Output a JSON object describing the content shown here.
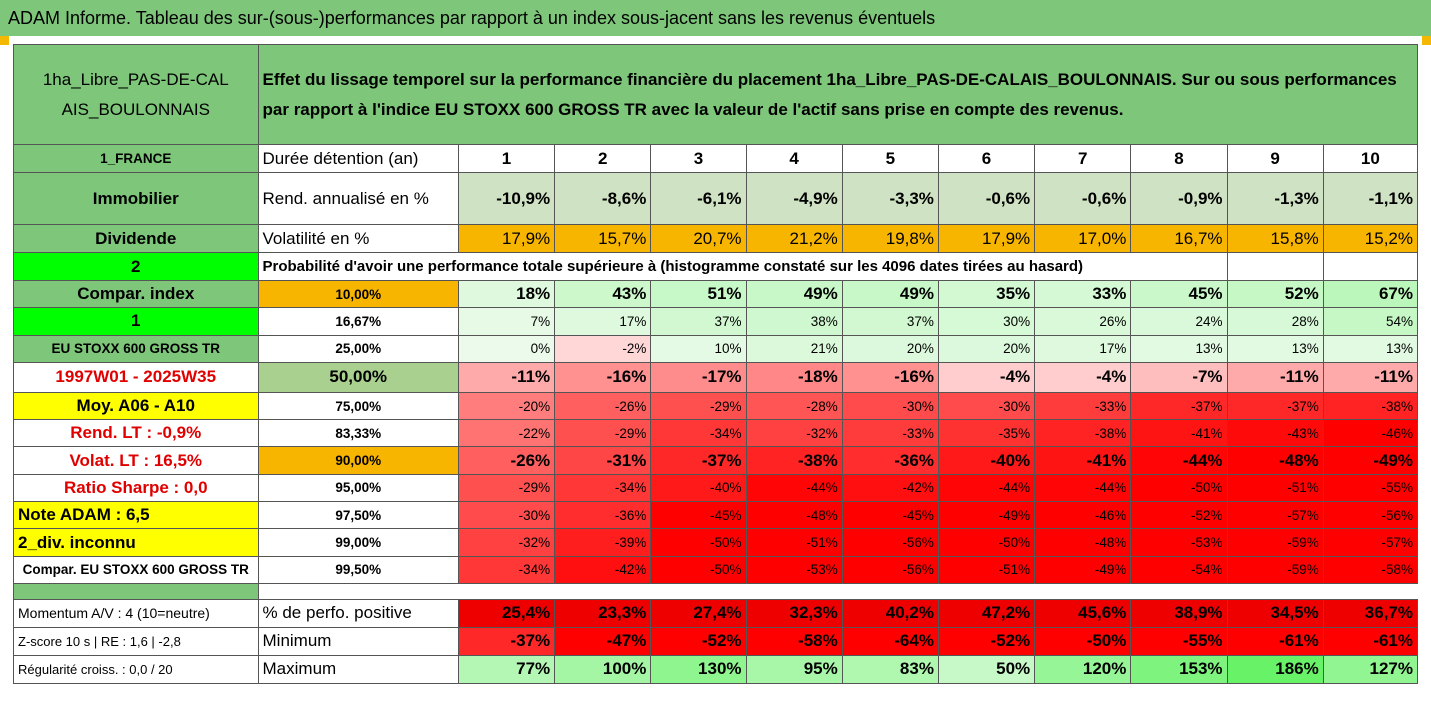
{
  "banner": "ADAM Informe. Tableau des sur-(sous-)performances par rapport à un index sous-jacent sans les revenus éventuels",
  "header": {
    "fund": "1ha_Libre_PAS-DE-CALAIS_BOULONNAIS",
    "description": "Effet du lissage temporel sur la performance financière du placement 1ha_Libre_PAS-DE-CALAIS_BOULONNAIS. Sur ou sous performances par rapport à l'indice EU STOXX 600 GROSS TR avec la valeur de l'actif sans prise en compte des revenus."
  },
  "years_row": {
    "left": "1_FRANCE",
    "label": "Durée détention (an)",
    "years": [
      "1",
      "2",
      "3",
      "4",
      "5",
      "6",
      "7",
      "8",
      "9",
      "10"
    ]
  },
  "rend_row": {
    "left": "Immobilier",
    "label": "Rend. annualisé en %",
    "values": [
      "-10,9%",
      "-8,6%",
      "-6,1%",
      "-4,9%",
      "-3,3%",
      "-0,6%",
      "-0,6%",
      "-0,9%",
      "-1,3%",
      "-1,1%"
    ]
  },
  "vol_row": {
    "left": "Dividende",
    "label": "Volatilité en %",
    "values": [
      "17,9%",
      "15,7%",
      "20,7%",
      "21,2%",
      "19,8%",
      "17,9%",
      "17,0%",
      "16,7%",
      "15,8%",
      "15,2%"
    ]
  },
  "prob_row": {
    "left": "2",
    "text": "Probabilité d'avoir une performance totale supérieure à (histogramme constaté sur les 4096 dates tirées au hasard)"
  },
  "quantiles": [
    {
      "left": "Compar. index",
      "pct": "10,00%",
      "values": [
        "18%",
        "43%",
        "51%",
        "49%",
        "49%",
        "35%",
        "33%",
        "45%",
        "52%",
        "67%"
      ]
    },
    {
      "left": "1",
      "pct": "16,67%",
      "values": [
        "7%",
        "17%",
        "37%",
        "38%",
        "37%",
        "30%",
        "26%",
        "24%",
        "28%",
        "54%"
      ]
    },
    {
      "left": "EU STOXX 600 GROSS TR",
      "pct": "25,00%",
      "values": [
        "0%",
        "-2%",
        "10%",
        "21%",
        "20%",
        "20%",
        "17%",
        "13%",
        "13%",
        "13%"
      ]
    },
    {
      "left": "1997W01 - 2025W35",
      "pct": "50,00%",
      "values": [
        "-11%",
        "-16%",
        "-17%",
        "-18%",
        "-16%",
        "-4%",
        "-4%",
        "-7%",
        "-11%",
        "-11%"
      ]
    },
    {
      "left": "Moy. A06 - A10",
      "pct": "75,00%",
      "values": [
        "-20%",
        "-26%",
        "-29%",
        "-28%",
        "-30%",
        "-30%",
        "-33%",
        "-37%",
        "-37%",
        "-38%"
      ]
    },
    {
      "left": "Rend. LT :   -0,9%",
      "pct": "83,33%",
      "values": [
        "-22%",
        "-29%",
        "-34%",
        "-32%",
        "-33%",
        "-35%",
        "-38%",
        "-41%",
        "-43%",
        "-46%"
      ]
    },
    {
      "left": "Volat. LT :   16,5%",
      "pct": "90,00%",
      "values": [
        "-26%",
        "-31%",
        "-37%",
        "-38%",
        "-36%",
        "-40%",
        "-41%",
        "-44%",
        "-48%",
        "-49%"
      ]
    },
    {
      "left": "Ratio Sharpe :   0,0",
      "pct": "95,00%",
      "values": [
        "-29%",
        "-34%",
        "-40%",
        "-44%",
        "-42%",
        "-44%",
        "-44%",
        "-50%",
        "-51%",
        "-55%"
      ]
    },
    {
      "left": "Note ADAM : 6,5",
      "pct": "97,50%",
      "values": [
        "-30%",
        "-36%",
        "-45%",
        "-48%",
        "-45%",
        "-49%",
        "-46%",
        "-52%",
        "-57%",
        "-56%"
      ]
    },
    {
      "left": "2_div. inconnu",
      "pct": "99,00%",
      "values": [
        "-32%",
        "-39%",
        "-50%",
        "-51%",
        "-56%",
        "-50%",
        "-48%",
        "-53%",
        "-59%",
        "-57%"
      ]
    },
    {
      "left": "Compar. EU STOXX 600 GROSS TR",
      "pct": "99,50%",
      "values": [
        "-34%",
        "-42%",
        "-50%",
        "-53%",
        "-56%",
        "-51%",
        "-49%",
        "-54%",
        "-59%",
        "-58%"
      ]
    }
  ],
  "stats": [
    {
      "left": "Momentum A/V : 4 (10=neutre)",
      "label": "% de perfo. positive",
      "values": [
        "25,4%",
        "23,3%",
        "27,4%",
        "32,3%",
        "40,2%",
        "47,2%",
        "45,6%",
        "38,9%",
        "34,5%",
        "36,7%"
      ]
    },
    {
      "left": "Z-score 10 s  |  RE : 1,6  |  -2,8",
      "label": "Minimum",
      "values": [
        "-37%",
        "-47%",
        "-52%",
        "-58%",
        "-64%",
        "-52%",
        "-50%",
        "-55%",
        "-61%",
        "-61%"
      ]
    },
    {
      "left": "Régularité croiss. : 0,0 / 20",
      "label": "Maximum",
      "values": [
        "77%",
        "100%",
        "130%",
        "95%",
        "83%",
        "50%",
        "120%",
        "153%",
        "186%",
        "127%"
      ]
    }
  ],
  "colors": {
    "green_header": "#7dc67a",
    "orange": "#f8b500",
    "bright_green": "#00ff00",
    "yellow": "#ffff00",
    "red_text": "#e00000",
    "rend_cells": "#cfe3c4"
  }
}
